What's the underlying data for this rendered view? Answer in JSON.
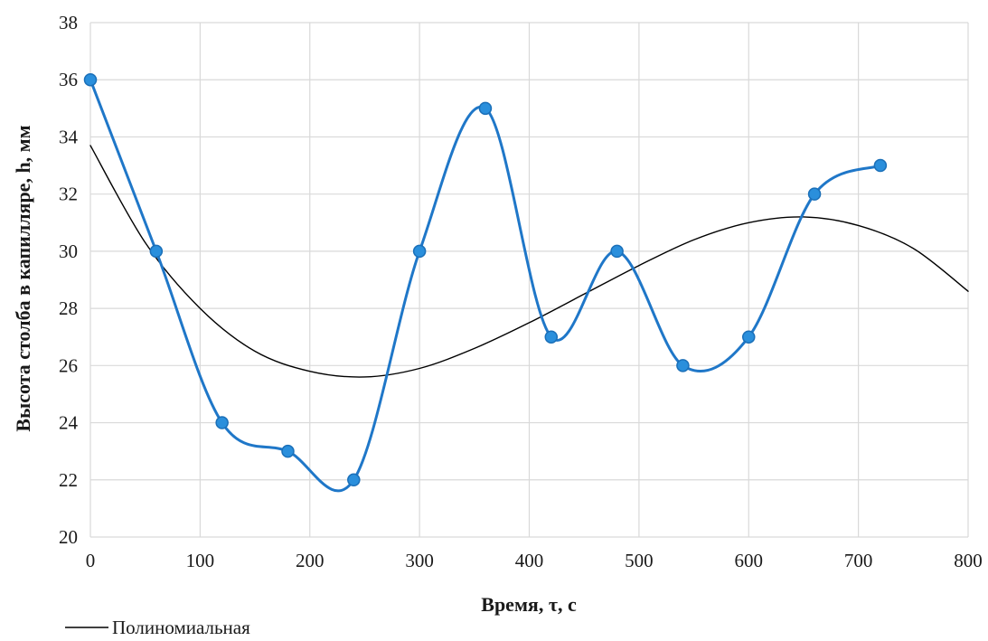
{
  "chart_data": {
    "type": "line",
    "title": "",
    "xlabel": "Время, τ, с",
    "ylabel": "Высота столба в капилляре, h, мм",
    "xlim": [
      0,
      800
    ],
    "ylim": [
      20,
      38
    ],
    "x_ticks": [
      0,
      100,
      200,
      300,
      400,
      500,
      600,
      700,
      800
    ],
    "y_ticks": [
      20,
      22,
      24,
      26,
      28,
      30,
      32,
      34,
      36,
      38
    ],
    "grid": true,
    "legend_position": "bottom-left",
    "series": [
      {
        "color": "#1f77c8",
        "smooth": true,
        "markers": true,
        "x": [
          0,
          60,
          120,
          180,
          240,
          300,
          360,
          420,
          480,
          540,
          600,
          660,
          720
        ],
        "y": [
          36,
          30,
          24,
          23,
          22,
          30,
          35,
          27,
          30,
          26,
          27,
          32,
          33
        ]
      },
      {
        "name": "Полиномиальная",
        "color": "#000000",
        "smooth": true,
        "markers": false,
        "x": [
          0,
          50,
          100,
          150,
          200,
          250,
          300,
          350,
          400,
          450,
          500,
          550,
          600,
          650,
          700,
          750,
          800
        ],
        "y": [
          33.7,
          30.3,
          28.0,
          26.5,
          25.8,
          25.6,
          25.9,
          26.6,
          27.5,
          28.5,
          29.5,
          30.4,
          31.0,
          31.2,
          30.9,
          30.1,
          28.6
        ]
      }
    ]
  }
}
